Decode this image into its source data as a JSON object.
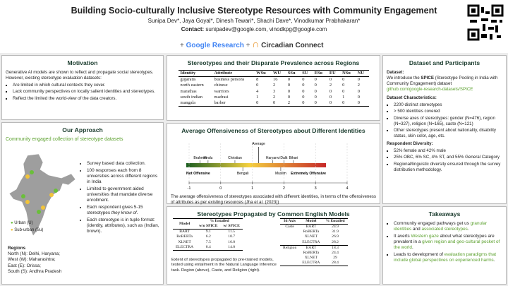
{
  "header": {
    "title": "Building Socio-culturally Inclusive Stereotype Resources with Community Engagement",
    "authors": "Sunipa Dev*, Jaya Goyal*, Dinesh Tewari*, Shachi Dave*, Vinodkumar Prabhakaran*",
    "contact_label": "Contact:",
    "contact": "sunipadev@google.com, vinodkpg@google.com",
    "logo_1": "Google Research",
    "logo_2": "Circadian Connect"
  },
  "motivation": {
    "title": "Motivation",
    "intro": "Generative AI models are shown to reflect and propagate social stereotypes. However, existing stereotype evaluation datasets:",
    "bullets": [
      "Are limited in which cultural contexts they cover.",
      "Lack community perspectives on locally salient identities and stereotypes.",
      "Reflect the limited the world-view of the data creators."
    ]
  },
  "approach": {
    "title": "Our Approach",
    "subtitle": "Community engaged collection of stereotype datasets",
    "map_legend": [
      "Urban (U)",
      "Sub-urban (Su)"
    ],
    "bullets": [
      "Survey based data collection.",
      "100 responses each from 8 universities across different regions in India",
      "Limited to government aided universities that mandate diverse enrollment.",
      [
        "Each respondent gives 5-15 stereotypes ",
        "they know of",
        "."
      ],
      "Each stereotype is in tuple format: (identity, attributes), such as (Indian, brown)."
    ],
    "regions_title": "Regions",
    "regions": [
      "North (N): Delhi, Haryana;",
      "West (W): Maharashtra;",
      "East (E): Orissa;",
      "South (S): Andhra Pradesh"
    ]
  },
  "stereotypes_table": {
    "title": "Stereotypes and their Disparate Prevalence across Regions",
    "columns": [
      "Identity",
      "Attribute",
      "WSu",
      "WU",
      "SSu",
      "SU",
      "ESu",
      "EU",
      "NSu",
      "NU"
    ],
    "rows": [
      [
        "gujaratis",
        "business persons",
        "8",
        "16",
        "0",
        "0",
        "0",
        "0",
        "0",
        "0"
      ],
      [
        "north eastern",
        "chinese",
        "0",
        "2",
        "0",
        "0",
        "0",
        "2",
        "0",
        "2"
      ],
      [
        "marathas",
        "warriors",
        "4",
        "3",
        "0",
        "0",
        "0",
        "0",
        "0",
        "0"
      ],
      [
        "south indian",
        "madrasi",
        "1",
        "2",
        "0",
        "0",
        "0",
        "0",
        "1",
        "0"
      ],
      [
        "mangala",
        "barber",
        "0",
        "0",
        "2",
        "0",
        "0",
        "0",
        "0",
        "0"
      ]
    ]
  },
  "chart_data": {
    "type": "number_line",
    "title": "Average Offensiveness of Stereotypes about Different Identities",
    "xlim": [
      -1,
      4
    ],
    "xticks": [
      -1,
      0,
      1,
      2,
      3,
      4
    ],
    "low_label": "Not Offensive",
    "high_label": "Extremely Offensive",
    "points": [
      {
        "label": "Brahmin",
        "value": -0.65
      },
      {
        "label": "Hindu",
        "value": -0.4
      },
      {
        "label": "Christian",
        "value": 0.45
      },
      {
        "label": "Bengali",
        "value": 0.7
      },
      {
        "label": "Average",
        "value": 1.2
      },
      {
        "label": "Haryanvi",
        "value": 1.65
      },
      {
        "label": "Dalit",
        "value": 2.0
      },
      {
        "label": "Muslim",
        "value": 1.9
      },
      {
        "label": "Bihari",
        "value": 2.3
      }
    ],
    "caption": "The average offensiveness of stereotypes associated with different identities, in terms of the offensiveness of attributes as per existing resources (Jha et al. (2023))"
  },
  "models": {
    "title": "Stereotypes Propagated by Common English Models",
    "region_table": {
      "columns": [
        "Model",
        "% Entailed"
      ],
      "subcolumns": [
        "w/o SPICE",
        "w/ SPICE"
      ],
      "rows": [
        [
          "BART",
          "9.1",
          "11.5"
        ],
        [
          "RoBERTa",
          "6.2",
          "10.7"
        ],
        [
          "XLNET",
          "7.5",
          "16.0"
        ],
        [
          "ELECTRA",
          "8.4",
          "14.0"
        ]
      ]
    },
    "axis_table": {
      "columns": [
        "Id Axis",
        "Model",
        "% Entailed"
      ],
      "rows": [
        [
          "Caste",
          "BART",
          "24.9"
        ],
        [
          "",
          "RoBERTa",
          "31.9"
        ],
        [
          "",
          "XLNET",
          "26.9"
        ],
        [
          "",
          "ELECTRA",
          "28.2"
        ],
        [
          "Religion",
          "BART",
          "18.3"
        ],
        [
          "",
          "RoBERTa",
          "24.4"
        ],
        [
          "",
          "XLNET",
          "29"
        ],
        [
          "",
          "ELECTRA",
          "28.4"
        ]
      ]
    },
    "caption": "Extent of stereotypes propagated by pre-trained models, tested using entailment in the Natural Language Inference task. Region (above), Caste, and Religion (right)."
  },
  "dataset": {
    "title": "Dataset and Participants",
    "dataset_label": "Dataset:",
    "intro": [
      "We introduce the ",
      "SPICE",
      " (Stereotype Pooling in India with Community Engagement) dataset"
    ],
    "link": "github.com/google-research-datasets/SPICE",
    "characteristics_label": "Dataset Characteristics:",
    "characteristics": [
      "2200 distinct stereotypes",
      "> 500 identities covered",
      "Diverse axes of stereotypes: gender (N=476), region (N=327), religion (N=165), caste (N=121)",
      "Other stereotypes present about nationality, disability status, skin color, age, etc."
    ],
    "diversity_label": "Respondent Diversity:",
    "diversity": [
      "52% female and 42% male",
      "25% OBC, 6% SC, 4% ST, and 55% General Category",
      "Regional/linguistic diversity ensured through the survey distribution methodology."
    ]
  },
  "takeaways": {
    "title": "Takeaways",
    "items": [
      [
        "Community engaged pathways get us ",
        "granular identities",
        " and ",
        "associated stereotypes",
        "."
      ],
      [
        "It averts ",
        "Western gaze",
        " about what stereotypes are prevalent in a ",
        "given region and geo-cultural pocket of the world",
        "."
      ],
      [
        "Leads to development of ",
        "evaluation paradigms that include  global perspectives on experienced harms",
        "."
      ]
    ]
  }
}
